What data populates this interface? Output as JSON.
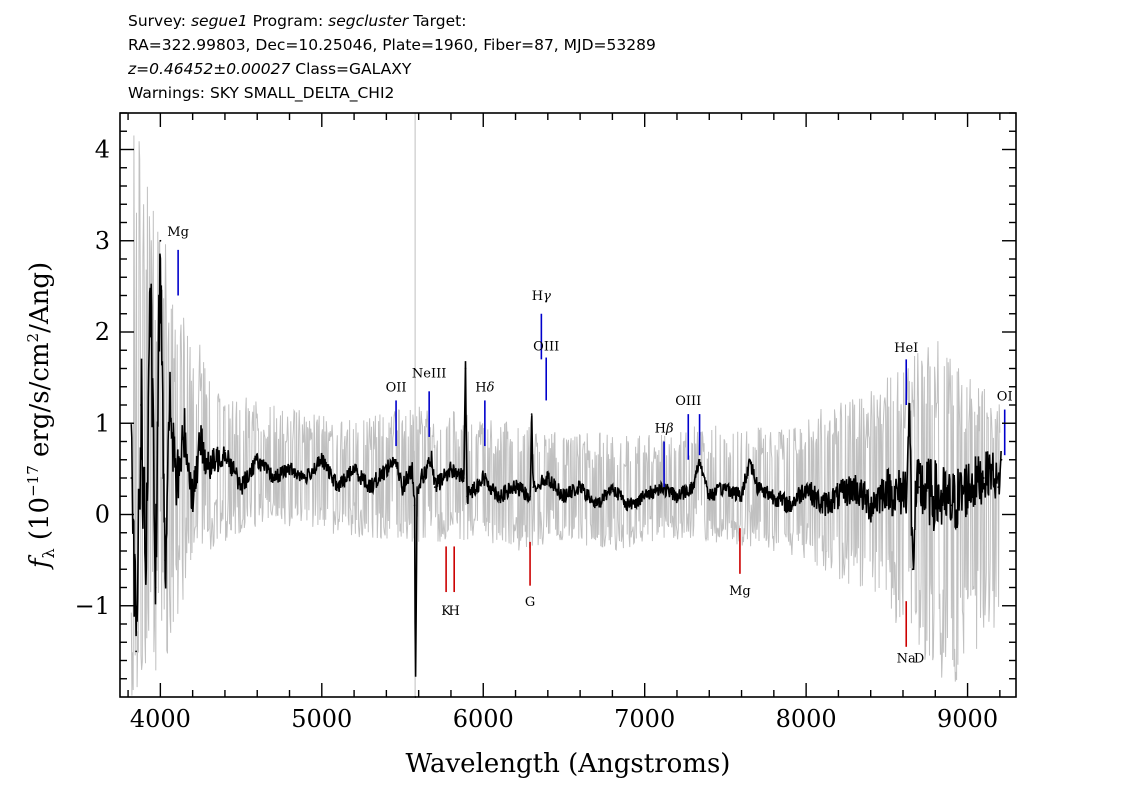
{
  "header": {
    "line1": {
      "survey_label": "Survey:",
      "survey": "segue1",
      "program_label": "Program:",
      "program": "segcluster",
      "target_label": "Target:"
    },
    "line2": "RA=322.99803, Dec=10.25046, Plate=1960, Fiber=87, MJD=53289",
    "line3": {
      "z": "z=0.46452±0.00027",
      "class": "Class=GALAXY"
    },
    "line4": "Warnings: SKY SMALL_DELTA_CHI2"
  },
  "chart_data": {
    "type": "line",
    "xlabel": "Wavelength (Angstroms)",
    "ylabel": "f_λ (10^-17 erg/s/cm^2/Ang)",
    "xlim": [
      3750,
      9300
    ],
    "ylim": [
      -2.0,
      4.4
    ],
    "xticks": [
      4000,
      5000,
      6000,
      7000,
      8000,
      9000
    ],
    "yticks": [
      -1,
      0,
      1,
      2,
      3,
      4
    ],
    "grid": false,
    "colors": {
      "flux": "#000000",
      "noise": "#c0c0c0",
      "emission": "#0000cc",
      "absorption": "#cc0000"
    },
    "series": [
      {
        "role": "flux",
        "x": [
          3820,
          3850,
          3880,
          3910,
          3940,
          3970,
          4000,
          4030,
          4060,
          4100,
          4150,
          4200,
          4250,
          4300,
          4400,
          4500,
          4600,
          4700,
          4800,
          4900,
          5000,
          5100,
          5200,
          5300,
          5400,
          5450,
          5500,
          5560,
          5575,
          5580,
          5590,
          5620,
          5680,
          5700,
          5800,
          5880,
          5890,
          5900,
          6000,
          6100,
          6200,
          6290,
          6300,
          6310,
          6400,
          6500,
          6600,
          6700,
          6800,
          6900,
          7000,
          7100,
          7200,
          7300,
          7340,
          7400,
          7500,
          7600,
          7650,
          7700,
          7800,
          7900,
          8000,
          8100,
          8200,
          8300,
          8400,
          8500,
          8550,
          8620,
          8640,
          8660,
          8680,
          8700,
          8800,
          8900,
          9000,
          9100,
          9150,
          9190,
          9210
        ],
        "y": [
          0.4,
          -1.5,
          1.2,
          -0.6,
          2.4,
          -0.8,
          3.0,
          -0.5,
          1.2,
          0.3,
          0.9,
          0.2,
          0.8,
          0.5,
          0.7,
          0.3,
          0.6,
          0.4,
          0.5,
          0.4,
          0.6,
          0.3,
          0.5,
          0.3,
          0.5,
          0.6,
          0.3,
          0.5,
          0.1,
          -2.0,
          0.3,
          0.4,
          0.6,
          0.3,
          0.5,
          0.4,
          1.6,
          0.2,
          0.4,
          0.2,
          0.3,
          0.2,
          1.1,
          0.3,
          0.4,
          0.2,
          0.3,
          0.1,
          0.3,
          0.1,
          0.2,
          0.3,
          0.2,
          0.3,
          0.6,
          0.2,
          0.3,
          0.2,
          0.6,
          0.3,
          0.2,
          0.1,
          0.3,
          0.1,
          0.2,
          0.3,
          0.1,
          0.3,
          0.2,
          0.3,
          1.1,
          -0.6,
          0.2,
          0.3,
          0.2,
          0.1,
          0.3,
          0.4,
          0.5,
          0.3,
          0.6
        ]
      },
      {
        "role": "noise",
        "x": [
          3820,
          3860,
          3900,
          3950,
          4000,
          4050,
          4100,
          4200,
          4300,
          4400,
          4500,
          4700,
          5000,
          5300,
          5600,
          5900,
          6200,
          6500,
          6800,
          7100,
          7400,
          7700,
          8000,
          8300,
          8500,
          8600,
          8700,
          8800,
          8900,
          9000,
          9100,
          9200
        ],
        "lo": [
          -2.0,
          -2.0,
          -2.0,
          -2.0,
          -1.9,
          -1.5,
          -1.2,
          -0.7,
          -0.4,
          -0.3,
          -0.2,
          -0.1,
          -0.2,
          -0.3,
          -0.3,
          -0.3,
          -0.4,
          -0.3,
          -0.4,
          -0.3,
          -0.3,
          -0.4,
          -0.5,
          -0.8,
          -1.0,
          -1.4,
          -1.8,
          -1.9,
          -1.9,
          -1.7,
          -1.4,
          -1.2
        ],
        "hi": [
          4.0,
          4.4,
          4.1,
          3.6,
          3.3,
          2.8,
          2.3,
          2.0,
          1.7,
          1.5,
          1.3,
          1.2,
          1.1,
          1.1,
          1.2,
          1.1,
          1.0,
          0.9,
          0.9,
          0.9,
          1.0,
          1.0,
          1.1,
          1.3,
          1.5,
          1.6,
          1.8,
          2.0,
          1.8,
          1.6,
          1.4,
          1.2
        ]
      }
    ],
    "annotations": [
      {
        "label": "Mg",
        "sub": "",
        "x": 4110,
        "kind": "emission",
        "y1": 2.4,
        "y2": 2.9,
        "ty": 3.05
      },
      {
        "label": "OII",
        "sub": "",
        "x": 5460,
        "kind": "emission",
        "y1": 0.75,
        "y2": 1.25,
        "ty": 1.35
      },
      {
        "label": "NeIII",
        "sub": "",
        "x": 5665,
        "kind": "emission",
        "y1": 0.85,
        "y2": 1.35,
        "ty": 1.5
      },
      {
        "label": "H",
        "sub": "δ",
        "x": 6010,
        "kind": "emission",
        "y1": 0.75,
        "y2": 1.25,
        "ty": 1.35
      },
      {
        "label": "H",
        "sub": "γ",
        "x": 6360,
        "kind": "emission",
        "y1": 1.7,
        "y2": 2.2,
        "ty": 2.35
      },
      {
        "label": "OIII",
        "sub": "",
        "x": 6390,
        "kind": "emission",
        "y1": 1.25,
        "y2": 1.72,
        "ty": 1.8
      },
      {
        "label": "H",
        "sub": "β",
        "x": 7120,
        "kind": "emission",
        "y1": 0.3,
        "y2": 0.8,
        "ty": 0.9
      },
      {
        "label": "OIII",
        "sub": "",
        "x": 7270,
        "kind": "emission",
        "y1": 0.6,
        "y2": 1.1,
        "ty": 1.2
      },
      {
        "label": "",
        "sub": "",
        "x": 7340,
        "kind": "emission",
        "y1": 0.65,
        "y2": 1.1,
        "ty": 0
      },
      {
        "label": "HeI",
        "sub": "",
        "x": 8620,
        "kind": "emission",
        "y1": 1.2,
        "y2": 1.7,
        "ty": 1.78
      },
      {
        "label": "OI",
        "sub": "",
        "x": 9230,
        "kind": "emission",
        "y1": 0.65,
        "y2": 1.15,
        "ty": 1.25
      },
      {
        "label": "K",
        "sub": "",
        "x": 5770,
        "kind": "absorption",
        "y1": -0.35,
        "y2": -0.85,
        "ty": -1.1
      },
      {
        "label": "H",
        "sub": "",
        "x": 5820,
        "kind": "absorption",
        "y1": -0.35,
        "y2": -0.85,
        "ty": -1.1
      },
      {
        "label": "G",
        "sub": "",
        "x": 6290,
        "kind": "absorption",
        "y1": -0.3,
        "y2": -0.78,
        "ty": -1.0
      },
      {
        "label": "Mg",
        "sub": "",
        "x": 7590,
        "kind": "absorption",
        "y1": -0.15,
        "y2": -0.65,
        "ty": -0.88
      },
      {
        "label": "Na",
        "sub": "",
        "x": 8620,
        "kind": "absorption",
        "y1": -0.95,
        "y2": -1.45,
        "ty": -1.62
      },
      {
        "label": "D",
        "sub": "",
        "x": 8700,
        "kind": "absorption",
        "y1": -0.95,
        "y2": -0.95,
        "ty": -1.62
      }
    ]
  }
}
